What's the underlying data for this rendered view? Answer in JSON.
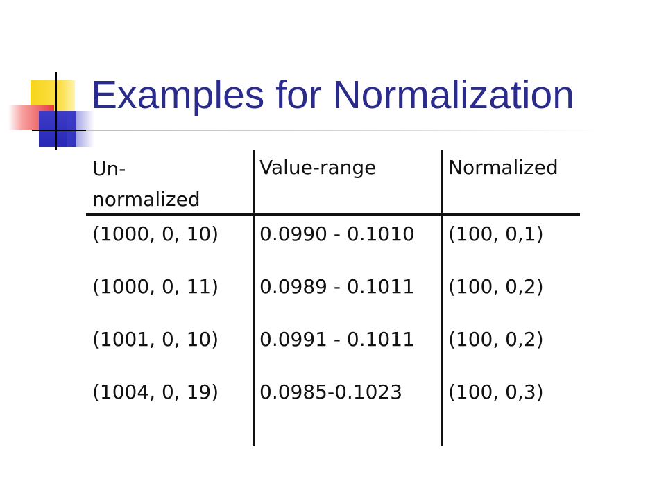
{
  "slide": {
    "title": "Examples for Normalization"
  },
  "table": {
    "headers": {
      "col1_line1": "Un-",
      "col1_line2": "normalized",
      "col2": "Value-range",
      "col3": "Normalized"
    },
    "rows": [
      {
        "unnormalized": "(1000, 0, 10)",
        "value_range": "0.0990 - 0.1010",
        "normalized": "(100, 0,1)"
      },
      {
        "unnormalized": "(1000, 0, 11)",
        "value_range": "0.0989 - 0.1011",
        "normalized": "(100, 0,2)"
      },
      {
        "unnormalized": "(1001, 0, 10)",
        "value_range": "0.0991 - 0.1011",
        "normalized": "(100, 0,2)"
      },
      {
        "unnormalized": "(1004, 0, 19)",
        "value_range": "0.0985-0.1023",
        "normalized": "(100, 0,3)"
      }
    ]
  },
  "colors": {
    "title": "#2b2b8c",
    "deco_yellow": "#f7d51a",
    "deco_red": "#e83c3c",
    "deco_blue": "#2828b8"
  }
}
